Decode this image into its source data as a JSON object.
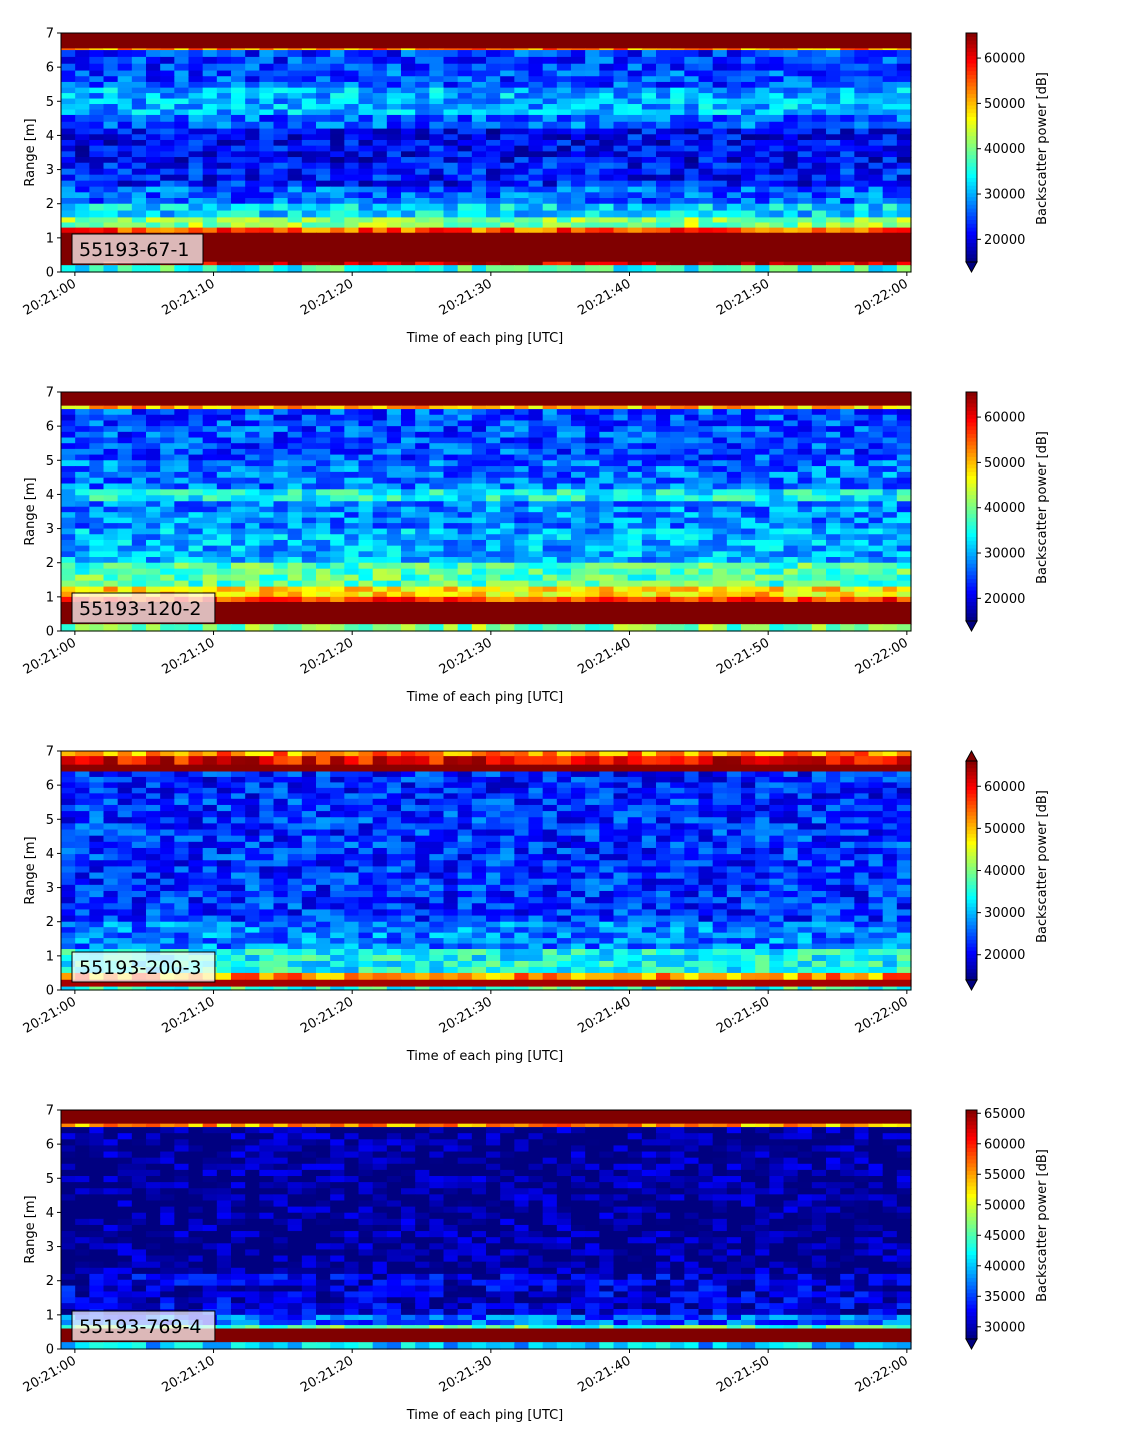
{
  "chart_data": [
    {
      "type": "heatmap",
      "panel_label": "55193-67-1",
      "xlabel": "Time of each ping [UTC]",
      "ylabel": "Range [m]",
      "x_ticks": [
        "20:21:00",
        "20:21:10",
        "20:21:20",
        "20:21:30",
        "20:21:40",
        "20:21:50",
        "20:22:00"
      ],
      "y_ticks": [
        "0",
        "1",
        "2",
        "3",
        "4",
        "5",
        "6",
        "7"
      ],
      "xlim_seconds": [
        -1,
        60.3
      ],
      "ylim": [
        0,
        7
      ],
      "colorbar": {
        "label": "Backscatter power [dB]",
        "ticks": [
          "20000",
          "30000",
          "40000",
          "50000",
          "60000"
        ],
        "range": [
          15000,
          65535
        ],
        "extend": "min"
      },
      "range_profile": [
        {
          "range": [
            6.55,
            7.0
          ],
          "level": 65535
        },
        {
          "range": [
            6.5,
            6.55
          ],
          "level": 52000
        },
        {
          "range": [
            5.9,
            6.5
          ],
          "level": 24000
        },
        {
          "range": [
            5.4,
            5.9
          ],
          "level": 25000
        },
        {
          "range": [
            4.6,
            5.4
          ],
          "level": 30000
        },
        {
          "range": [
            4.2,
            4.6
          ],
          "level": 26000
        },
        {
          "range": [
            3.2,
            4.2
          ],
          "level": 21000
        },
        {
          "range": [
            2.5,
            3.2
          ],
          "level": 22000
        },
        {
          "range": [
            2.0,
            2.5
          ],
          "level": 26000
        },
        {
          "range": [
            1.6,
            2.0
          ],
          "level": 32000
        },
        {
          "range": [
            1.3,
            1.6
          ],
          "level": 41000
        },
        {
          "range": [
            1.15,
            1.3
          ],
          "level": 55000
        },
        {
          "range": [
            0.3,
            1.15
          ],
          "level": 65535
        },
        {
          "range": [
            0.2,
            0.3
          ],
          "level": 62000
        },
        {
          "range": [
            0.0,
            0.2
          ],
          "level": 36000
        }
      ]
    },
    {
      "type": "heatmap",
      "panel_label": "55193-120-2",
      "xlabel": "Time of each ping [UTC]",
      "ylabel": "Range [m]",
      "x_ticks": [
        "20:21:00",
        "20:21:10",
        "20:21:20",
        "20:21:30",
        "20:21:40",
        "20:21:50",
        "20:22:00"
      ],
      "y_ticks": [
        "0",
        "1",
        "2",
        "3",
        "4",
        "5",
        "6",
        "7"
      ],
      "xlim_seconds": [
        -1,
        60.3
      ],
      "ylim": [
        0,
        7
      ],
      "colorbar": {
        "label": "Backscatter power [dB]",
        "ticks": [
          "20000",
          "30000",
          "40000",
          "50000",
          "60000"
        ],
        "range": [
          15000,
          65535
        ],
        "extend": "min"
      },
      "range_profile": [
        {
          "range": [
            6.6,
            7.0
          ],
          "level": 65535
        },
        {
          "range": [
            6.5,
            6.6
          ],
          "level": 50000
        },
        {
          "range": [
            5.0,
            6.5
          ],
          "level": 25000
        },
        {
          "range": [
            4.15,
            5.0
          ],
          "level": 27000
        },
        {
          "range": [
            3.8,
            4.15
          ],
          "level": 34000
        },
        {
          "range": [
            3.0,
            3.8
          ],
          "level": 28000
        },
        {
          "range": [
            2.0,
            3.0
          ],
          "level": 30000
        },
        {
          "range": [
            1.3,
            2.0
          ],
          "level": 38000
        },
        {
          "range": [
            1.0,
            1.3
          ],
          "level": 48000
        },
        {
          "range": [
            0.85,
            1.0
          ],
          "level": 56000
        },
        {
          "range": [
            0.2,
            0.85
          ],
          "level": 65535
        },
        {
          "range": [
            0.0,
            0.2
          ],
          "level": 40000
        }
      ]
    },
    {
      "type": "heatmap",
      "panel_label": "55193-200-3",
      "xlabel": "Time of each ping [UTC]",
      "ylabel": "Range [m]",
      "x_ticks": [
        "20:21:00",
        "20:21:10",
        "20:21:20",
        "20:21:30",
        "20:21:40",
        "20:21:50",
        "20:22:00"
      ],
      "y_ticks": [
        "0",
        "1",
        "2",
        "3",
        "4",
        "5",
        "6",
        "7"
      ],
      "xlim_seconds": [
        -1,
        60.3
      ],
      "ylim": [
        0,
        7
      ],
      "colorbar": {
        "label": "Backscatter power [dB]",
        "ticks": [
          "20000",
          "30000",
          "40000",
          "50000",
          "60000"
        ],
        "range": [
          14000,
          66000
        ],
        "extend": "both"
      },
      "range_profile": [
        {
          "range": [
            6.85,
            7.0
          ],
          "level": 52000
        },
        {
          "range": [
            6.6,
            6.85
          ],
          "level": 60000
        },
        {
          "range": [
            6.4,
            6.6
          ],
          "level": 65535
        },
        {
          "range": [
            5.6,
            6.4
          ],
          "level": 22000
        },
        {
          "range": [
            2.0,
            5.6
          ],
          "level": 23000
        },
        {
          "range": [
            1.2,
            2.0
          ],
          "level": 27000
        },
        {
          "range": [
            0.5,
            1.2
          ],
          "level": 34000
        },
        {
          "range": [
            0.3,
            0.5
          ],
          "level": 52000
        },
        {
          "range": [
            0.1,
            0.3
          ],
          "level": 64000
        },
        {
          "range": [
            0.0,
            0.1
          ],
          "level": 36000
        }
      ]
    },
    {
      "type": "heatmap",
      "panel_label": "55193-769-4",
      "xlabel": "Time of each ping [UTC]",
      "ylabel": "Range [m]",
      "x_ticks": [
        "20:21:00",
        "20:21:10",
        "20:21:20",
        "20:21:30",
        "20:21:40",
        "20:21:50",
        "20:22:00"
      ],
      "y_ticks": [
        "0",
        "1",
        "2",
        "3",
        "4",
        "5",
        "6",
        "7"
      ],
      "xlim_seconds": [
        -1,
        60.3
      ],
      "ylim": [
        0,
        7
      ],
      "colorbar": {
        "label": "Backscatter power [dB]",
        "ticks": [
          "30000",
          "35000",
          "40000",
          "45000",
          "50000",
          "55000",
          "60000",
          "65000"
        ],
        "range": [
          28000,
          65535
        ],
        "extend": "min"
      },
      "range_profile": [
        {
          "range": [
            6.6,
            7.0
          ],
          "level": 65535
        },
        {
          "range": [
            6.5,
            6.6
          ],
          "level": 55000
        },
        {
          "range": [
            2.2,
            6.5
          ],
          "level": 28500
        },
        {
          "range": [
            1.0,
            2.2
          ],
          "level": 31000
        },
        {
          "range": [
            0.7,
            1.0
          ],
          "level": 36000
        },
        {
          "range": [
            0.6,
            0.7
          ],
          "level": 45000
        },
        {
          "range": [
            0.2,
            0.6
          ],
          "level": 65535
        },
        {
          "range": [
            0.0,
            0.2
          ],
          "level": 40000
        }
      ]
    }
  ]
}
